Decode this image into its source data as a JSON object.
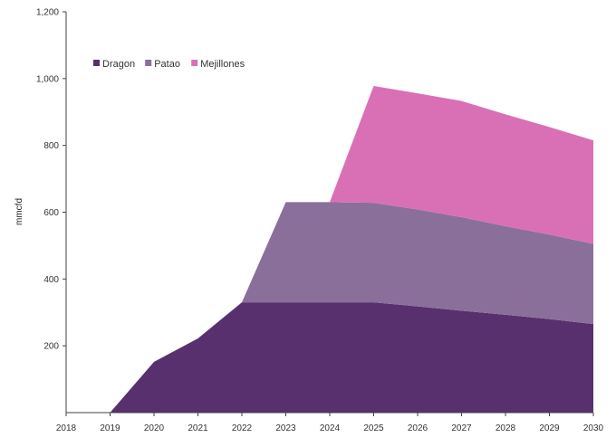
{
  "chart_data": {
    "type": "area",
    "stacked": true,
    "title": "",
    "xlabel": "",
    "ylabel": "mmcfd",
    "x": [
      "2018",
      "2019",
      "2020",
      "2021",
      "2022",
      "2023",
      "2024",
      "2025",
      "2026",
      "2027",
      "2028",
      "2029",
      "2030"
    ],
    "ylim": [
      0,
      1200
    ],
    "yticks": [
      {
        "value": 200,
        "label": "200"
      },
      {
        "value": 400,
        "label": "400"
      },
      {
        "value": 600,
        "label": "600"
      },
      {
        "value": 800,
        "label": "800"
      },
      {
        "value": 1000,
        "label": "1,000"
      },
      {
        "value": 1200,
        "label": "1,200"
      }
    ],
    "grid": false,
    "legend": "top-left",
    "series": [
      {
        "name": "Dragon",
        "color": "#58306e",
        "values": [
          0,
          0,
          152,
          222,
          330,
          330,
          330,
          330,
          318,
          305,
          293,
          280,
          265
        ]
      },
      {
        "name": "Patao",
        "color": "#8a6f9a",
        "values": [
          0,
          0,
          0,
          0,
          0,
          300,
          300,
          298,
          290,
          280,
          265,
          253,
          240
        ]
      },
      {
        "name": "Mejillones",
        "color": "#d970b5",
        "values": [
          0,
          0,
          0,
          0,
          0,
          0,
          0,
          350,
          348,
          348,
          335,
          322,
          310
        ]
      }
    ]
  }
}
